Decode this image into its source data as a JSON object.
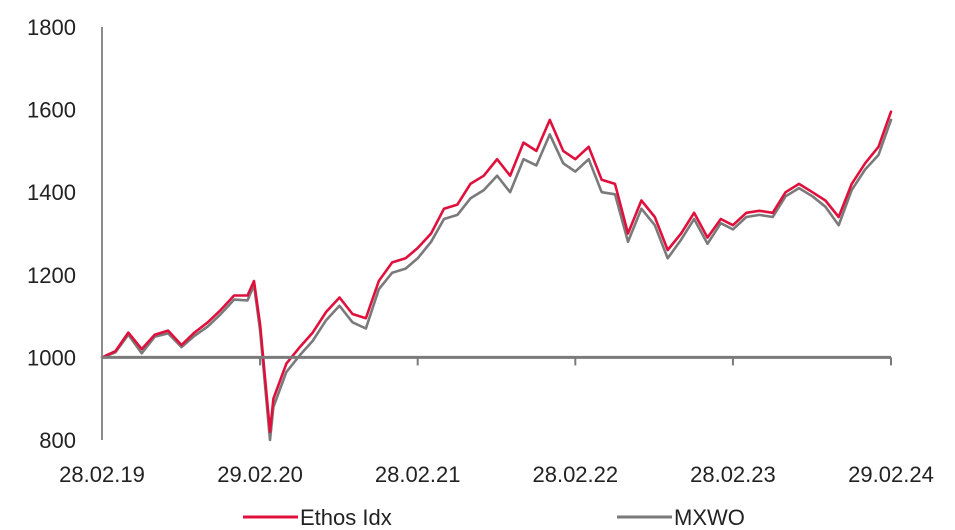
{
  "chart_data": {
    "type": "line",
    "x_axis": {
      "ticks": [
        "28.02.19",
        "29.02.20",
        "28.02.21",
        "28.02.22",
        "28.02.23",
        "29.02.24"
      ],
      "range": [
        "28.02.19",
        "29.02.24"
      ]
    },
    "y_axis": {
      "ticks": [
        800,
        1000,
        1200,
        1400,
        1600,
        1800
      ],
      "range": [
        800,
        1800
      ]
    },
    "baseline": 1000,
    "grid": false,
    "legend_position": "bottom",
    "series": [
      {
        "name": "Ethos Idx",
        "color": "#e0103c",
        "points": [
          [
            "28.02.19",
            1000
          ],
          [
            "31.03.19",
            1015
          ],
          [
            "30.04.19",
            1060
          ],
          [
            "31.05.19",
            1020
          ],
          [
            "30.06.19",
            1055
          ],
          [
            "31.07.19",
            1065
          ],
          [
            "31.08.19",
            1030
          ],
          [
            "30.09.19",
            1060
          ],
          [
            "31.10.19",
            1085
          ],
          [
            "30.11.19",
            1115
          ],
          [
            "31.12.19",
            1150
          ],
          [
            "31.01.20",
            1150
          ],
          [
            "15.02.20",
            1185
          ],
          [
            "29.02.20",
            1080
          ],
          [
            "23.03.20",
            820
          ],
          [
            "31.03.20",
            900
          ],
          [
            "30.04.20",
            985
          ],
          [
            "31.05.20",
            1025
          ],
          [
            "30.06.20",
            1060
          ],
          [
            "31.07.20",
            1110
          ],
          [
            "31.08.20",
            1145
          ],
          [
            "30.09.20",
            1105
          ],
          [
            "31.10.20",
            1095
          ],
          [
            "30.11.20",
            1185
          ],
          [
            "31.12.20",
            1230
          ],
          [
            "31.01.21",
            1240
          ],
          [
            "28.02.21",
            1265
          ],
          [
            "31.03.21",
            1300
          ],
          [
            "30.04.21",
            1360
          ],
          [
            "31.05.21",
            1370
          ],
          [
            "30.06.21",
            1420
          ],
          [
            "31.07.21",
            1440
          ],
          [
            "31.08.21",
            1480
          ],
          [
            "30.09.21",
            1440
          ],
          [
            "31.10.21",
            1520
          ],
          [
            "30.11.21",
            1500
          ],
          [
            "31.12.21",
            1575
          ],
          [
            "31.01.22",
            1500
          ],
          [
            "28.02.22",
            1480
          ],
          [
            "31.03.22",
            1510
          ],
          [
            "30.04.22",
            1430
          ],
          [
            "31.05.22",
            1420
          ],
          [
            "30.06.22",
            1300
          ],
          [
            "31.07.22",
            1380
          ],
          [
            "31.08.22",
            1340
          ],
          [
            "30.09.22",
            1260
          ],
          [
            "31.10.22",
            1300
          ],
          [
            "30.11.22",
            1350
          ],
          [
            "31.12.22",
            1290
          ],
          [
            "31.01.23",
            1335
          ],
          [
            "28.02.23",
            1320
          ],
          [
            "31.03.23",
            1350
          ],
          [
            "30.04.23",
            1355
          ],
          [
            "31.05.23",
            1350
          ],
          [
            "30.06.23",
            1400
          ],
          [
            "31.07.23",
            1420
          ],
          [
            "31.08.23",
            1400
          ],
          [
            "30.09.23",
            1380
          ],
          [
            "31.10.23",
            1340
          ],
          [
            "30.11.23",
            1420
          ],
          [
            "31.12.23",
            1470
          ],
          [
            "31.01.24",
            1510
          ],
          [
            "29.02.24",
            1595
          ]
        ]
      },
      {
        "name": "MXWO",
        "color": "#7a7a7a",
        "points": [
          [
            "28.02.19",
            1000
          ],
          [
            "31.03.19",
            1012
          ],
          [
            "30.04.19",
            1055
          ],
          [
            "31.05.19",
            1010
          ],
          [
            "30.06.19",
            1050
          ],
          [
            "31.07.19",
            1058
          ],
          [
            "31.08.19",
            1025
          ],
          [
            "30.09.19",
            1052
          ],
          [
            "31.10.19",
            1075
          ],
          [
            "30.11.19",
            1105
          ],
          [
            "31.12.19",
            1140
          ],
          [
            "31.01.20",
            1138
          ],
          [
            "15.02.20",
            1175
          ],
          [
            "29.02.20",
            1065
          ],
          [
            "23.03.20",
            800
          ],
          [
            "31.03.20",
            880
          ],
          [
            "30.04.20",
            965
          ],
          [
            "31.05.20",
            1005
          ],
          [
            "30.06.20",
            1040
          ],
          [
            "31.07.20",
            1090
          ],
          [
            "31.08.20",
            1125
          ],
          [
            "30.09.20",
            1085
          ],
          [
            "31.10.20",
            1070
          ],
          [
            "30.11.20",
            1165
          ],
          [
            "31.12.20",
            1205
          ],
          [
            "31.01.21",
            1215
          ],
          [
            "28.02.21",
            1240
          ],
          [
            "31.03.21",
            1280
          ],
          [
            "30.04.21",
            1335
          ],
          [
            "31.05.21",
            1345
          ],
          [
            "30.06.21",
            1385
          ],
          [
            "31.07.21",
            1405
          ],
          [
            "31.08.21",
            1440
          ],
          [
            "30.09.21",
            1400
          ],
          [
            "31.10.21",
            1480
          ],
          [
            "30.11.21",
            1465
          ],
          [
            "31.12.21",
            1540
          ],
          [
            "31.01.22",
            1470
          ],
          [
            "28.02.22",
            1450
          ],
          [
            "31.03.22",
            1480
          ],
          [
            "30.04.22",
            1400
          ],
          [
            "31.05.22",
            1395
          ],
          [
            "30.06.22",
            1280
          ],
          [
            "31.07.22",
            1360
          ],
          [
            "31.08.22",
            1320
          ],
          [
            "30.09.22",
            1240
          ],
          [
            "31.10.22",
            1285
          ],
          [
            "30.11.22",
            1335
          ],
          [
            "31.12.22",
            1275
          ],
          [
            "31.01.23",
            1325
          ],
          [
            "28.02.23",
            1310
          ],
          [
            "31.03.23",
            1340
          ],
          [
            "30.04.23",
            1345
          ],
          [
            "31.05.23",
            1340
          ],
          [
            "30.06.23",
            1390
          ],
          [
            "31.07.23",
            1410
          ],
          [
            "31.08.23",
            1390
          ],
          [
            "30.09.23",
            1365
          ],
          [
            "31.10.23",
            1320
          ],
          [
            "30.11.23",
            1405
          ],
          [
            "31.12.23",
            1455
          ],
          [
            "31.01.24",
            1490
          ],
          [
            "29.02.24",
            1575
          ]
        ]
      }
    ]
  }
}
